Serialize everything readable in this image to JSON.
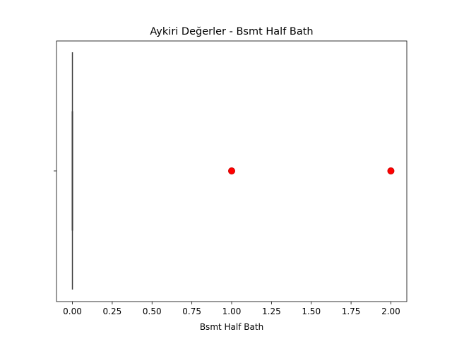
{
  "chart_data": {
    "type": "box",
    "orientation": "horizontal",
    "title": "Aykiri Değerler - Bsmt Half Bath",
    "xlabel": "Bsmt Half Bath",
    "ylabel": "",
    "xlim": [
      -0.1,
      2.1
    ],
    "xticks": [
      0.0,
      0.25,
      0.5,
      0.75,
      1.0,
      1.25,
      1.5,
      1.75,
      2.0
    ],
    "xtick_labels": [
      "0.00",
      "0.25",
      "0.50",
      "0.75",
      "1.00",
      "1.25",
      "1.50",
      "1.75",
      "2.00"
    ],
    "grid": false,
    "box": {
      "min": 0,
      "q1": 0,
      "median": 0,
      "q3": 0,
      "max": 0
    },
    "outliers": [
      1.0,
      2.0
    ],
    "outlier_color": "#ff0000",
    "box_line_color": "#3d3d3d"
  }
}
